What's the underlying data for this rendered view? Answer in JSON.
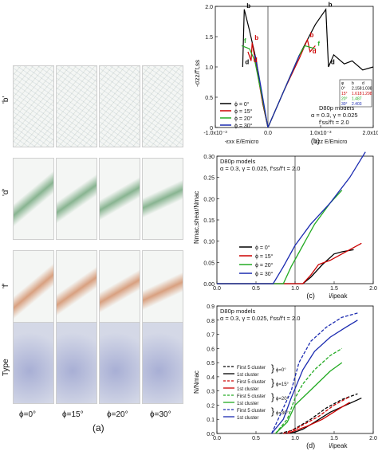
{
  "left_panel": {
    "row_labels": [
      "'b'",
      "'d'",
      "'f'",
      "Type"
    ],
    "col_labels": [
      "ϕ=0°",
      "ϕ=15°",
      "ϕ=20°",
      "ϕ=30°"
    ],
    "panel_label": "(a)",
    "colors": {
      "cracks": "#2a7a3a",
      "band": "#c0551a",
      "type_blue": "#1a2a9a",
      "type_red": "#b3261e"
    }
  },
  "chart_data": [
    {
      "id": "b",
      "type": "line",
      "panel_label": "(b)",
      "ylabel": "-σzz/f't,ss",
      "xlabel_left": "-εxx E/Emicro",
      "xlabel_right": "εzz E/Emicro",
      "xlim": [
        -0.001,
        0.002
      ],
      "ylim": [
        0,
        2.0
      ],
      "yticks": [
        0,
        0.5,
        1.0,
        1.5,
        2.0
      ],
      "ytick_labels": [
        "0",
        "0.5",
        "1.0",
        "1.5",
        "2.0"
      ],
      "xtick_labels": [
        "-1.0x10⁻³",
        "0.0",
        "1.0x10⁻³",
        "2.0x10⁻³"
      ],
      "xticks": [
        -0.001,
        0,
        0.001,
        0.002
      ],
      "legend": [
        "ϕ = 0°",
        "ϕ = 15°",
        "ϕ = 20°",
        "ϕ = 30°"
      ],
      "annotation": {
        "title": "D80p models",
        "line1": "α = 0.3, γ = 0.025",
        "line2": "f'ss/f't = 2.0"
      },
      "inset_table": {
        "header": [
          "φ",
          "b",
          "d"
        ],
        "rows": [
          [
            "0°",
            "2.158",
            "1.038"
          ],
          [
            "15°",
            "1.618",
            "1.298"
          ],
          [
            "20°",
            "1.487",
            ""
          ],
          [
            "30°",
            "2.403",
            ""
          ]
        ]
      },
      "point_labels": [
        "b",
        "d",
        "b",
        "d",
        "b",
        "d",
        "b",
        "d",
        "f",
        "f"
      ],
      "series": [
        {
          "name": "ϕ = 0°",
          "color": "#000000",
          "left": [
            [
              0,
              0
            ],
            [
              -0.0001,
              0.4
            ],
            [
              -0.00022,
              1.1
            ],
            [
              -0.00035,
              1.6
            ],
            [
              -0.00045,
              1.95
            ],
            [
              -0.00048,
              1.0
            ]
          ],
          "right": [
            [
              0,
              0
            ],
            [
              0.0003,
              0.6
            ],
            [
              0.0006,
              1.2
            ],
            [
              0.0009,
              1.7
            ],
            [
              0.0011,
              1.95
            ],
            [
              0.00115,
              1.0
            ],
            [
              0.00125,
              1.2
            ],
            [
              0.00145,
              1.05
            ],
            [
              0.0016,
              1.1
            ],
            [
              0.0018,
              0.95
            ],
            [
              0.002,
              1.0
            ]
          ]
        },
        {
          "name": "ϕ = 15°",
          "color": "#cc0000",
          "left": [
            [
              0,
              0
            ],
            [
              -0.00012,
              0.5
            ],
            [
              -0.00022,
              1.0
            ],
            [
              -0.0003,
              1.4
            ],
            [
              -0.00032,
              1.1
            ],
            [
              -0.00038,
              1.25
            ]
          ],
          "right": [
            [
              0,
              0
            ],
            [
              0.0003,
              0.6
            ],
            [
              0.0006,
              1.15
            ],
            [
              0.00075,
              1.45
            ],
            [
              0.0008,
              1.25
            ],
            [
              0.0009,
              1.35
            ]
          ]
        },
        {
          "name": "ϕ = 20°",
          "color": "#22aa22",
          "left": [
            [
              0,
              0
            ],
            [
              -0.0001,
              0.45
            ],
            [
              -0.00025,
              1.1
            ],
            [
              -0.00035,
              1.3
            ],
            [
              -0.0005,
              1.35
            ]
          ],
          "right": [
            [
              0,
              0
            ],
            [
              0.0003,
              0.6
            ],
            [
              0.0006,
              1.2
            ],
            [
              0.0007,
              1.35
            ],
            [
              0.0009,
              1.3
            ]
          ]
        },
        {
          "name": "ϕ = 30°",
          "color": "#1a2ab0",
          "left": [
            [
              0,
              0
            ],
            [
              -0.0001,
              0.5
            ],
            [
              -0.00018,
              0.9
            ],
            [
              -0.00025,
              1.2
            ]
          ],
          "right": [
            [
              0,
              0
            ],
            [
              0.00025,
              0.5
            ],
            [
              0.0005,
              1.0
            ],
            [
              0.0006,
              1.2
            ]
          ]
        }
      ]
    },
    {
      "id": "c",
      "type": "line",
      "panel_label": "(c)",
      "ylabel": "Nmac,shear/Nmac",
      "xlabel": "i/ipeak",
      "xlim": [
        0,
        2.0
      ],
      "ylim": [
        0,
        0.3
      ],
      "xticks": [
        0,
        0.5,
        1.0,
        1.5,
        2.0
      ],
      "xtick_labels": [
        "0.0",
        "0.5",
        "1.0",
        "1.5",
        "2.0"
      ],
      "yticks": [
        0,
        0.05,
        0.1,
        0.15,
        0.2,
        0.25,
        0.3
      ],
      "ytick_labels": [
        "0.00",
        "0.05",
        "0.10",
        "0.15",
        "0.20",
        "0.25",
        "0.30"
      ],
      "legend": [
        "ϕ = 0°",
        "ϕ = 15°",
        "ϕ = 20°",
        "ϕ = 30°"
      ],
      "annotation": {
        "title": "D80p models",
        "line1": "α = 0.3, γ = 0.025, f'ss/f't = 2.0"
      },
      "series": [
        {
          "name": "ϕ = 0°",
          "color": "#000000",
          "x": [
            0,
            1.1,
            1.2,
            1.35,
            1.5,
            1.6,
            1.75
          ],
          "y": [
            0,
            0,
            0.015,
            0.045,
            0.07,
            0.075,
            0.08
          ]
        },
        {
          "name": "ϕ = 15°",
          "color": "#cc0000",
          "x": [
            0,
            1.1,
            1.2,
            1.3,
            1.45,
            1.6,
            1.85
          ],
          "y": [
            0,
            0,
            0.02,
            0.045,
            0.055,
            0.07,
            0.095
          ]
        },
        {
          "name": "ϕ = 20°",
          "color": "#22aa22",
          "x": [
            0,
            0.85,
            0.95,
            1.1,
            1.25,
            1.45,
            1.6
          ],
          "y": [
            0,
            0,
            0.04,
            0.09,
            0.14,
            0.19,
            0.22
          ]
        },
        {
          "name": "ϕ = 30°",
          "color": "#1a2ab0",
          "x": [
            0,
            0.72,
            0.85,
            1.0,
            1.2,
            1.45,
            1.7,
            1.9
          ],
          "y": [
            0,
            0,
            0.04,
            0.09,
            0.14,
            0.19,
            0.25,
            0.31
          ]
        }
      ]
    },
    {
      "id": "d",
      "type": "line",
      "panel_label": "(d)",
      "ylabel": "N/Nmac",
      "xlabel": "i/ipeak",
      "xlim": [
        0,
        2.0
      ],
      "ylim": [
        0,
        0.9
      ],
      "xticks": [
        0,
        0.5,
        1.0,
        1.5,
        2.0
      ],
      "xtick_labels": [
        "0.0",
        "0.5",
        "1.0",
        "1.5",
        "2.0"
      ],
      "yticks": [
        0,
        0.1,
        0.2,
        0.3,
        0.4,
        0.5,
        0.6,
        0.7,
        0.8,
        0.9
      ],
      "ytick_labels": [
        "0.0",
        "0.1",
        "0.2",
        "0.3",
        "0.4",
        "0.5",
        "0.6",
        "0.7",
        "0.8",
        "0.9"
      ],
      "legend": [
        "First 5 cluster",
        "1st cluster",
        "First 5 cluster",
        "1st cluster",
        "First 5 cluster",
        "1st cluster",
        "First 5 cluster",
        "1st cluster"
      ],
      "legend_groups": [
        "ϕ=0°",
        "ϕ=15°",
        "ϕ=20°",
        "ϕ=30°"
      ],
      "annotation": {
        "title": "D80p models",
        "line1": "α = 0.3, γ = 0.025, f'ss/f't = 2.0"
      },
      "series": [
        {
          "name": "First 5 cluster",
          "color": "#000000",
          "dash": true,
          "x": [
            0.8,
            0.95,
            1.05,
            1.2,
            1.4,
            1.6,
            1.8
          ],
          "y": [
            0,
            0.02,
            0.05,
            0.1,
            0.18,
            0.24,
            0.28
          ]
        },
        {
          "name": "1st cluster",
          "color": "#000000",
          "dash": false,
          "x": [
            0.85,
            1.0,
            1.1,
            1.25,
            1.45,
            1.65,
            1.85
          ],
          "y": [
            0,
            0.01,
            0.03,
            0.08,
            0.15,
            0.2,
            0.25
          ]
        },
        {
          "name": "First 5 cluster",
          "color": "#cc0000",
          "dash": true,
          "x": [
            0.85,
            1.0,
            1.1,
            1.3,
            1.5,
            1.7
          ],
          "y": [
            0,
            0.03,
            0.06,
            0.12,
            0.2,
            0.26
          ]
        },
        {
          "name": "1st cluster",
          "color": "#cc0000",
          "dash": false,
          "x": [
            0.9,
            1.0,
            1.15,
            1.35,
            1.55,
            1.7
          ],
          "y": [
            0,
            0.02,
            0.05,
            0.1,
            0.17,
            0.22
          ]
        },
        {
          "name": "First 5 cluster",
          "color": "#22aa22",
          "dash": true,
          "x": [
            0.75,
            0.9,
            1.0,
            1.1,
            1.25,
            1.45,
            1.6
          ],
          "y": [
            0,
            0.1,
            0.25,
            0.35,
            0.45,
            0.55,
            0.6
          ]
        },
        {
          "name": "1st cluster",
          "color": "#22aa22",
          "dash": false,
          "x": [
            0.75,
            0.9,
            1.0,
            1.15,
            1.3,
            1.45,
            1.6
          ],
          "y": [
            0,
            0.08,
            0.2,
            0.28,
            0.36,
            0.44,
            0.5
          ]
        },
        {
          "name": "First 5 cluster",
          "color": "#1a2ab0",
          "dash": true,
          "x": [
            0.7,
            0.8,
            0.95,
            1.05,
            1.2,
            1.4,
            1.6,
            1.8
          ],
          "y": [
            0,
            0.12,
            0.3,
            0.5,
            0.65,
            0.75,
            0.82,
            0.85
          ]
        },
        {
          "name": "1st cluster",
          "color": "#1a2ab0",
          "dash": false,
          "x": [
            0.7,
            0.85,
            0.95,
            1.1,
            1.25,
            1.45,
            1.65,
            1.8
          ],
          "y": [
            0,
            0.1,
            0.25,
            0.45,
            0.58,
            0.68,
            0.75,
            0.8
          ]
        }
      ]
    }
  ]
}
